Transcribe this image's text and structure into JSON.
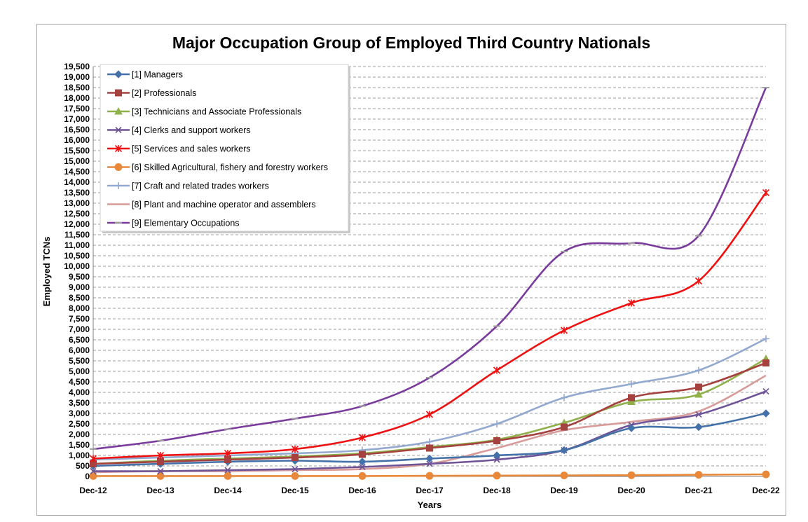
{
  "chart_data": {
    "type": "line",
    "title": "Major Occupation Group of Employed Third Country Nationals",
    "xlabel": "Years",
    "ylabel": "Employed TCNs",
    "ylim": [
      0,
      19500
    ],
    "ytick_step": 500,
    "grid": true,
    "legend_position": "top-left",
    "categories": [
      "Dec-12",
      "Dec-13",
      "Dec-14",
      "Dec-15",
      "Dec-16",
      "Dec-17",
      "Dec-18",
      "Dec-19",
      "Dec-20",
      "Dec-21",
      "Dec-22"
    ],
    "series": [
      {
        "name": "[1] Managers",
        "color": "#4472a8",
        "marker": "diamond",
        "values": [
          500,
          600,
          700,
          750,
          700,
          850,
          1000,
          1250,
          2300,
          2350,
          3000
        ]
      },
      {
        "name": "[2] Professionals",
        "color": "#a5413f",
        "marker": "square",
        "values": [
          600,
          700,
          800,
          900,
          1050,
          1350,
          1700,
          2350,
          3750,
          4250,
          5400
        ]
      },
      {
        "name": "[3] Technicians and Associate Professionals",
        "color": "#8fb04a",
        "marker": "triangle",
        "values": [
          600,
          750,
          850,
          950,
          1100,
          1400,
          1750,
          2550,
          3550,
          3900,
          5600
        ]
      },
      {
        "name": "[4] Clerks and support workers",
        "color": "#6e5496",
        "marker": "x",
        "values": [
          250,
          250,
          300,
          350,
          450,
          600,
          800,
          1250,
          2450,
          2950,
          4050
        ]
      },
      {
        "name": "[5] Services and sales workers",
        "color": "#ee1111",
        "marker": "star",
        "values": [
          850,
          1000,
          1100,
          1300,
          1850,
          2950,
          5050,
          6950,
          8250,
          9300,
          13500
        ]
      },
      {
        "name": "[6] Skilled Agricultural, fishery and forestry workers",
        "color": "#e8883a",
        "marker": "circle",
        "values": [
          20,
          20,
          20,
          20,
          20,
          30,
          40,
          50,
          60,
          80,
          100
        ]
      },
      {
        "name": "[7] Craft and related trades workers",
        "color": "#93a9cf",
        "marker": "plus",
        "values": [
          800,
          900,
          1000,
          1100,
          1250,
          1650,
          2500,
          3750,
          4400,
          5050,
          6550
        ]
      },
      {
        "name": "[8] Plant and machine operator and assemblers",
        "color": "#d79b99",
        "marker": "none",
        "values": [
          200,
          250,
          250,
          300,
          350,
          600,
          1350,
          2200,
          2600,
          3100,
          4800
        ]
      },
      {
        "name": "[9] Elementary Occupations",
        "color": "#7a3c9c",
        "marker": "dash",
        "values": [
          1300,
          1700,
          2250,
          2750,
          3350,
          4700,
          7150,
          10700,
          11100,
          11450,
          18500
        ]
      }
    ]
  }
}
